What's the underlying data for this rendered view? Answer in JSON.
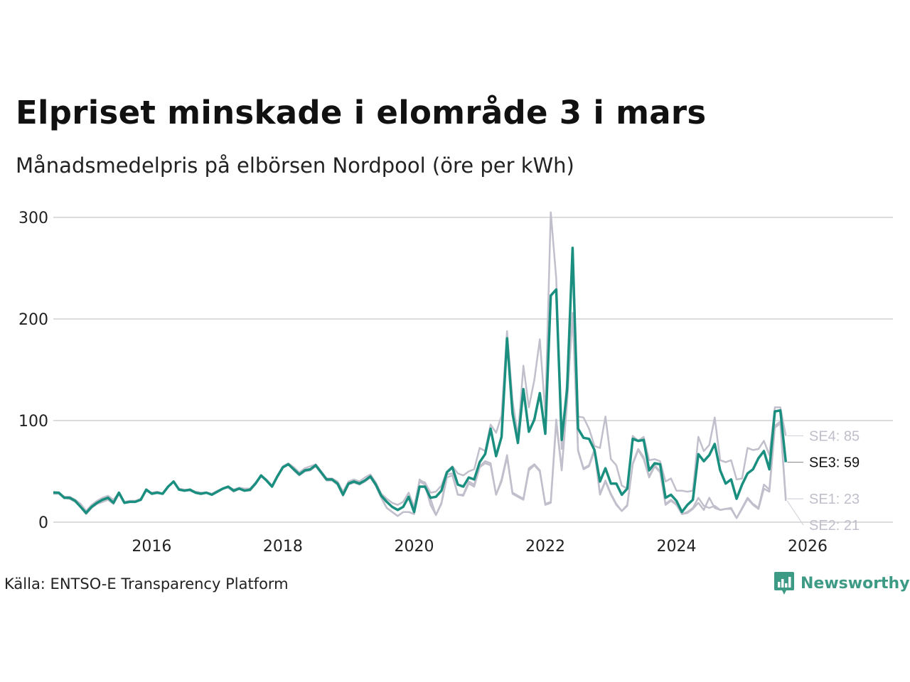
{
  "header": {
    "title": "Elpriset minskade i elområde 3 i mars",
    "subtitle": "Månadsmedelpris på elbörsen Nordpool (öre per kWh)"
  },
  "footer": {
    "source": "Källa: ENTSO-E Transparency Platform",
    "brand": "Newsworthy",
    "brand_color": "#3d9a85"
  },
  "chart_data": {
    "type": "line",
    "title": "Elpriset minskade i elområde 3 i mars",
    "subtitle": "Månadsmedelpris på elbörsen Nordpool (öre per kWh)",
    "xlabel": "",
    "ylabel": "",
    "x_start": "2015-01",
    "x_end": "2026-03",
    "xlim": [
      2015.0,
      2027.8
    ],
    "ylim": [
      0,
      300
    ],
    "x_ticks": [
      2016,
      2018,
      2020,
      2022,
      2024,
      2026
    ],
    "x_tick_labels": [
      "2016",
      "2018",
      "2020",
      "2022",
      "2024",
      "2026"
    ],
    "y_ticks": [
      0,
      100,
      200,
      300
    ],
    "y_tick_labels": [
      "0",
      "100",
      "200",
      "300"
    ],
    "grid": true,
    "legend": "direct end labels at right",
    "highlight_color": "#1a8f80",
    "muted_color": "#c0bfcb",
    "series": [
      {
        "name": "SE3",
        "highlight": true,
        "end_label": "SE3: 59",
        "values": [
          29,
          29,
          24,
          24,
          21,
          15,
          9,
          15,
          19,
          22,
          24,
          19,
          29,
          19,
          20,
          20,
          22,
          32,
          28,
          29,
          28,
          35,
          40,
          32,
          31,
          32,
          29,
          28,
          29,
          27,
          30,
          33,
          35,
          31,
          33,
          31,
          32,
          38,
          46,
          41,
          35,
          45,
          54,
          57,
          52,
          47,
          51,
          52,
          56,
          49,
          42,
          42,
          38,
          27,
          38,
          40,
          38,
          41,
          45,
          37,
          26,
          20,
          15,
          12,
          15,
          25,
          10,
          35,
          35,
          24,
          25,
          31,
          49,
          54,
          37,
          35,
          44,
          42,
          59,
          67,
          92,
          65,
          84,
          181,
          107,
          78,
          131,
          89,
          101,
          127,
          87,
          223,
          229,
          81,
          131,
          270,
          92,
          83,
          82,
          71,
          40,
          53,
          38,
          38,
          27,
          33,
          82,
          80,
          81,
          51,
          58,
          57,
          24,
          27,
          21,
          10,
          17,
          22,
          67,
          60,
          66,
          77,
          51,
          38,
          42,
          23,
          37,
          48,
          52,
          63,
          70,
          52,
          109,
          110,
          59
        ]
      },
      {
        "name": "SE4",
        "highlight": false,
        "end_label": "SE4: 85",
        "values": [
          30,
          29,
          25,
          25,
          22,
          18,
          11,
          17,
          21,
          24,
          26,
          22,
          29,
          20,
          21,
          21,
          23,
          31,
          29,
          30,
          28,
          35,
          40,
          33,
          32,
          32,
          30,
          29,
          29,
          28,
          31,
          33,
          35,
          32,
          34,
          33,
          33,
          39,
          46,
          42,
          36,
          46,
          55,
          58,
          54,
          49,
          53,
          55,
          57,
          50,
          43,
          43,
          40,
          30,
          40,
          42,
          40,
          44,
          47,
          39,
          28,
          23,
          19,
          17,
          20,
          29,
          15,
          41,
          39,
          29,
          30,
          36,
          50,
          55,
          48,
          46,
          50,
          52,
          73,
          70,
          96,
          88,
          105,
          188,
          120,
          84,
          154,
          113,
          140,
          180,
          107,
          305,
          240,
          72,
          140,
          270,
          104,
          103,
          92,
          75,
          73,
          104,
          62,
          56,
          36,
          33,
          85,
          80,
          84,
          61,
          62,
          60,
          40,
          43,
          31,
          31,
          30,
          31,
          84,
          70,
          76,
          103,
          61,
          59,
          61,
          42,
          43,
          73,
          71,
          72,
          80,
          66,
          113,
          113,
          85
        ]
      },
      {
        "name": "SE1",
        "highlight": false,
        "end_label": "SE1: 23",
        "values": [
          28,
          28,
          24,
          23,
          20,
          15,
          8,
          14,
          18,
          20,
          22,
          18,
          28,
          19,
          20,
          20,
          22,
          31,
          28,
          29,
          28,
          35,
          40,
          32,
          31,
          31,
          29,
          28,
          29,
          27,
          30,
          33,
          34,
          30,
          33,
          31,
          31,
          38,
          45,
          41,
          35,
          45,
          54,
          57,
          51,
          46,
          50,
          51,
          55,
          48,
          41,
          41,
          37,
          26,
          37,
          39,
          37,
          40,
          44,
          36,
          24,
          14,
          10,
          6,
          10,
          10,
          8,
          42,
          38,
          23,
          7,
          19,
          47,
          48,
          27,
          27,
          40,
          37,
          55,
          60,
          58,
          27,
          42,
          66,
          29,
          26,
          23,
          53,
          57,
          51,
          18,
          20,
          101,
          52,
          120,
          206,
          71,
          53,
          56,
          72,
          28,
          41,
          28,
          18,
          11,
          17,
          58,
          72,
          64,
          45,
          56,
          50,
          18,
          22,
          18,
          8,
          10,
          14,
          24,
          16,
          14,
          16,
          12,
          13,
          14,
          4,
          14,
          24,
          18,
          14,
          37,
          32,
          95,
          99,
          23
        ]
      },
      {
        "name": "SE2",
        "highlight": false,
        "end_label": "SE2: 21",
        "values": [
          28,
          28,
          24,
          23,
          20,
          15,
          8,
          14,
          18,
          20,
          22,
          18,
          28,
          19,
          20,
          20,
          22,
          31,
          28,
          29,
          28,
          35,
          40,
          32,
          31,
          31,
          29,
          28,
          29,
          27,
          30,
          33,
          34,
          30,
          33,
          31,
          31,
          38,
          45,
          41,
          35,
          45,
          54,
          57,
          51,
          46,
          50,
          51,
          55,
          48,
          41,
          41,
          37,
          26,
          37,
          39,
          37,
          40,
          44,
          36,
          24,
          14,
          10,
          6,
          10,
          10,
          8,
          40,
          37,
          17,
          7,
          18,
          44,
          46,
          27,
          26,
          38,
          35,
          54,
          58,
          56,
          27,
          40,
          64,
          28,
          25,
          22,
          51,
          56,
          50,
          17,
          19,
          98,
          51,
          118,
          205,
          70,
          52,
          55,
          70,
          27,
          40,
          27,
          17,
          11,
          16,
          57,
          71,
          62,
          44,
          55,
          49,
          17,
          21,
          17,
          8,
          9,
          13,
          19,
          12,
          24,
          14,
          12,
          13,
          13,
          4,
          13,
          23,
          17,
          13,
          33,
          30,
          93,
          97,
          21
        ]
      }
    ]
  }
}
